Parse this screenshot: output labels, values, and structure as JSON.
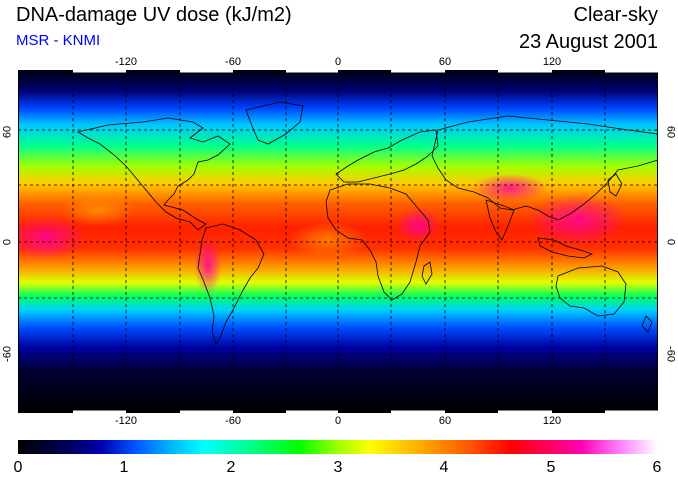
{
  "title": "DNA-damage UV dose (kJ/m2)",
  "source": "MSR - KNMI",
  "condition": "Clear-sky",
  "date": "23 August 2001",
  "axes": {
    "lon_ticks": [
      "-120",
      "-60",
      "0",
      "60",
      "120"
    ],
    "lat_ticks_left": [
      "60",
      "0",
      "-60"
    ],
    "lat_ticks_right": [
      "60",
      "0",
      "-60"
    ]
  },
  "colorbar": {
    "labels": [
      "0",
      "1",
      "2",
      "3",
      "4",
      "5",
      "6"
    ],
    "min": 0,
    "max": 6
  },
  "colors": {
    "subtitle": "#0000ff",
    "ocean_high_lat": "#000000",
    "tropics_max": "#ff0000"
  }
}
